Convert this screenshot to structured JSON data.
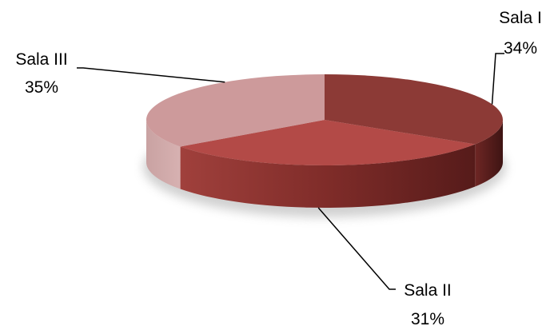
{
  "chart_data": {
    "type": "pie",
    "style": "3d-exploded-off",
    "series": [
      {
        "labels": [
          "Sala I",
          "Sala II",
          "Sala III"
        ],
        "values": [
          34,
          31,
          35
        ],
        "value_labels": [
          "34%",
          "31%",
          "35%"
        ],
        "colors": [
          "#8c3a36",
          "#b34a47",
          "#cd9a9b"
        ],
        "side_colors": [
          "#5e1c1b",
          "#7a2624",
          "#c4a0a0"
        ]
      }
    ],
    "title": "",
    "legend": "none",
    "data_labels": "outside-with-leader-lines"
  }
}
